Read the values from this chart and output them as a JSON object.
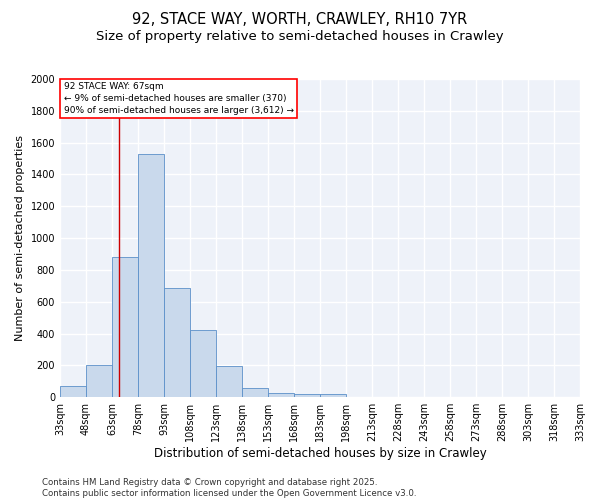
{
  "title": "92, STACE WAY, WORTH, CRAWLEY, RH10 7YR",
  "subtitle": "Size of property relative to semi-detached houses in Crawley",
  "xlabel": "Distribution of semi-detached houses by size in Crawley",
  "ylabel": "Number of semi-detached properties",
  "bar_color": "#c9d9ec",
  "bar_edge_color": "#5b8fc9",
  "background_color": "#eef2f9",
  "grid_color": "#ffffff",
  "annotation_text": "92 STACE WAY: 67sqm\n← 9% of semi-detached houses are smaller (370)\n90% of semi-detached houses are larger (3,612) →",
  "vline_x": 67,
  "vline_color": "#cc0000",
  "bin_edges": [
    33,
    48,
    63,
    78,
    93,
    108,
    123,
    138,
    153,
    168,
    183,
    198,
    213,
    228,
    243,
    258,
    273,
    288,
    303,
    318,
    333
  ],
  "bin_counts": [
    70,
    200,
    880,
    1530,
    685,
    420,
    195,
    55,
    28,
    22,
    20,
    0,
    0,
    0,
    0,
    0,
    0,
    0,
    0,
    0
  ],
  "ylim": [
    0,
    2000
  ],
  "yticks": [
    0,
    200,
    400,
    600,
    800,
    1000,
    1200,
    1400,
    1600,
    1800,
    2000
  ],
  "footnote": "Contains HM Land Registry data © Crown copyright and database right 2025.\nContains public sector information licensed under the Open Government Licence v3.0.",
  "title_fontsize": 10.5,
  "subtitle_fontsize": 9.5,
  "xlabel_fontsize": 8.5,
  "ylabel_fontsize": 8,
  "tick_fontsize": 7,
  "footnote_fontsize": 6.2
}
